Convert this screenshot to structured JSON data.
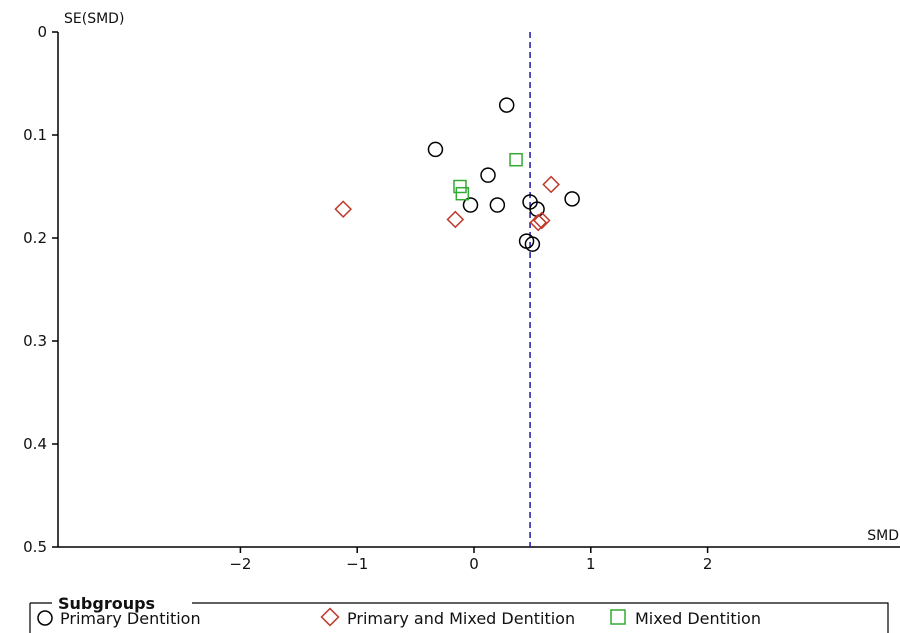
{
  "chart_data": {
    "type": "scatter",
    "title": "",
    "xlabel": "SMD",
    "ylabel": "SE(SMD)",
    "xlim": [
      -3.65,
      3.65
    ],
    "ylim": [
      0,
      0.5
    ],
    "y_inverted": true,
    "xticks": [
      -2,
      -1,
      0,
      1,
      2
    ],
    "yticks": [
      0,
      0.1,
      0.2,
      0.3,
      0.4,
      0.5
    ],
    "xtick_labels": [
      "−2",
      "−1",
      "0",
      "1",
      "2"
    ],
    "ytick_labels": [
      "0",
      "0.1",
      "0.2",
      "0.3",
      "0.4",
      "0.5"
    ],
    "reference_line_x": 0.48,
    "grid": false,
    "legend": {
      "title": "Subgroups",
      "placement": "bottom"
    },
    "series": [
      {
        "name": "Primary Dentition",
        "marker": "circle",
        "color": "#000000",
        "points": [
          {
            "x": 0.28,
            "y": 0.071
          },
          {
            "x": -0.33,
            "y": 0.114
          },
          {
            "x": 0.12,
            "y": 0.139
          },
          {
            "x": -0.03,
            "y": 0.168
          },
          {
            "x": 0.2,
            "y": 0.168
          },
          {
            "x": 0.48,
            "y": 0.165
          },
          {
            "x": 0.54,
            "y": 0.172
          },
          {
            "x": 0.84,
            "y": 0.162
          },
          {
            "x": 0.45,
            "y": 0.203
          },
          {
            "x": 0.5,
            "y": 0.206
          }
        ]
      },
      {
        "name": "Primary and Mixed Dentition",
        "marker": "diamond",
        "color": "#c0392b",
        "points": [
          {
            "x": -1.12,
            "y": 0.172
          },
          {
            "x": -0.16,
            "y": 0.182
          },
          {
            "x": 0.66,
            "y": 0.148
          },
          {
            "x": 0.55,
            "y": 0.185
          },
          {
            "x": 0.58,
            "y": 0.183
          }
        ]
      },
      {
        "name": "Mixed Dentition",
        "marker": "square",
        "color": "#33aa33",
        "points": [
          {
            "x": 0.36,
            "y": 0.124
          },
          {
            "x": -0.12,
            "y": 0.15
          },
          {
            "x": -0.1,
            "y": 0.157
          }
        ]
      }
    ]
  }
}
